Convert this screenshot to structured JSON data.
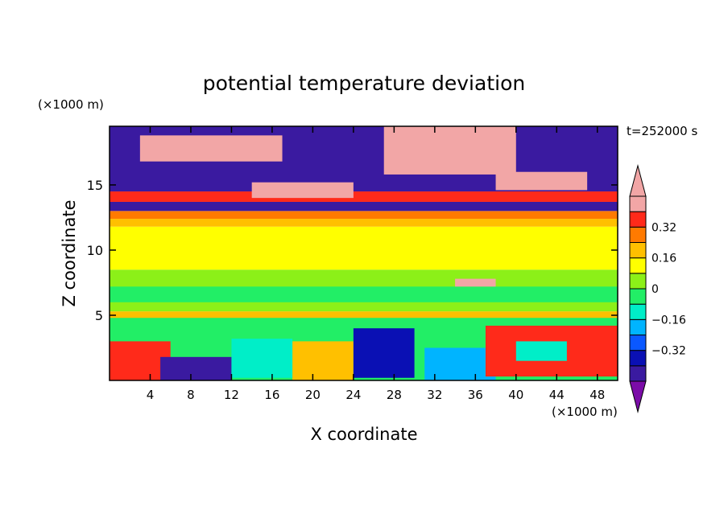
{
  "chart_data": {
    "type": "heatmap",
    "title": "potential temperature deviation",
    "time_label": "t=252000 s",
    "xlabel": "X coordinate",
    "ylabel": "Z coordinate",
    "x_units": "(×1000 m)",
    "y_units": "(×1000 m)",
    "xlim": [
      0,
      50
    ],
    "ylim": [
      0,
      19.5
    ],
    "x_ticks": [
      4,
      8,
      12,
      16,
      20,
      24,
      28,
      32,
      36,
      40,
      44,
      48
    ],
    "x_tick_labels": [
      "4",
      "8",
      "12",
      "16",
      "20",
      "24",
      "28",
      "32",
      "36",
      "40",
      "44",
      "48"
    ],
    "y_ticks": [
      5,
      10,
      15
    ],
    "y_tick_labels": [
      "5",
      "10",
      "15"
    ],
    "colorbar": {
      "levels": [
        -0.48,
        -0.4,
        -0.32,
        -0.24,
        -0.16,
        -0.08,
        0,
        0.08,
        0.16,
        0.24,
        0.32,
        0.4,
        0.48
      ],
      "colors": [
        "#7b0ca8",
        "#3a1aa0",
        "#0a10b4",
        "#0a58ff",
        "#00b4ff",
        "#00eec8",
        "#22ee66",
        "#8cf018",
        "#ffff00",
        "#ffc000",
        "#ff7a00",
        "#ff2a1a",
        "#f2a6a6"
      ],
      "tick_values": [
        -0.32,
        -0.16,
        0,
        0.16,
        0.32
      ],
      "tick_labels": [
        "−0.32",
        "−0.16",
        "0",
        "0.16",
        "0.32"
      ]
    },
    "field_regions": [
      {
        "x0": 0,
        "x1": 50,
        "z0": 0,
        "z1": 5,
        "value": -0.05
      },
      {
        "x0": 0,
        "x1": 50,
        "z0": 4.8,
        "z1": 5.3,
        "value": 0.2
      },
      {
        "x0": 0,
        "x1": 50,
        "z0": 5.3,
        "z1": 8.5,
        "value": 0.02
      },
      {
        "x0": 0,
        "x1": 50,
        "z0": 8.5,
        "z1": 11.8,
        "value": 0.1
      },
      {
        "x0": 0,
        "x1": 50,
        "z0": 11.8,
        "z1": 12.4,
        "value": 0.22
      },
      {
        "x0": 0,
        "x1": 50,
        "z0": 12.4,
        "z1": 13.0,
        "value": 0.3
      },
      {
        "x0": 0,
        "x1": 50,
        "z0": 13.0,
        "z1": 13.7,
        "value": -0.45
      },
      {
        "x0": 0,
        "x1": 50,
        "z0": 13.7,
        "z1": 14.5,
        "value": 0.38
      },
      {
        "x0": 0,
        "x1": 50,
        "z0": 14.5,
        "z1": 19.5,
        "value": -0.45
      },
      {
        "x0": 3,
        "x1": 17,
        "z0": 16.8,
        "z1": 18.8,
        "value": 0.5
      },
      {
        "x0": 14,
        "x1": 24,
        "z0": 14.0,
        "z1": 15.2,
        "value": 0.5
      },
      {
        "x0": 27,
        "x1": 40,
        "z0": 15.8,
        "z1": 19.5,
        "value": 0.5
      },
      {
        "x0": 38,
        "x1": 47,
        "z0": 14.6,
        "z1": 16.0,
        "value": 0.5
      },
      {
        "x0": 0,
        "x1": 6,
        "z0": 0,
        "z1": 3.0,
        "value": 0.35
      },
      {
        "x0": 5,
        "x1": 12,
        "z0": 0,
        "z1": 1.8,
        "value": -0.45
      },
      {
        "x0": 12,
        "x1": 18,
        "z0": 0.2,
        "z1": 3.2,
        "value": -0.1
      },
      {
        "x0": 18,
        "x1": 24,
        "z0": 0,
        "z1": 3.0,
        "value": 0.2
      },
      {
        "x0": 24,
        "x1": 30,
        "z0": 0.2,
        "z1": 4.0,
        "value": -0.4
      },
      {
        "x0": 31,
        "x1": 38,
        "z0": 0,
        "z1": 2.5,
        "value": -0.2
      },
      {
        "x0": 37,
        "x1": 50,
        "z0": 0.3,
        "z1": 4.2,
        "value": 0.35
      },
      {
        "x0": 40,
        "x1": 45,
        "z0": 1.5,
        "z1": 3.0,
        "value": -0.15
      },
      {
        "x0": 0,
        "x1": 50,
        "z0": 6.0,
        "z1": 7.2,
        "value": -0.06
      },
      {
        "x0": 34,
        "x1": 38,
        "z0": 7.2,
        "z1": 7.8,
        "value": 0.5
      }
    ]
  }
}
